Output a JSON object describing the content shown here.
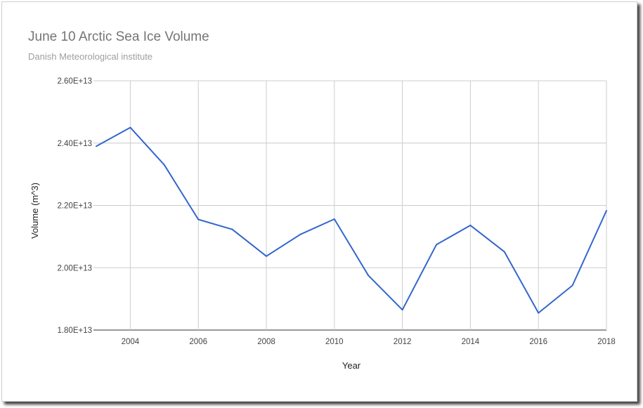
{
  "chart_data": {
    "type": "line",
    "title": "June 10 Arctic Sea Ice Volume",
    "subtitle": "Danish Meteorological institute",
    "xlabel": "Year",
    "ylabel": "Volume (m^3)",
    "x": [
      2003,
      2004,
      2005,
      2006,
      2007,
      2008,
      2009,
      2010,
      2011,
      2012,
      2013,
      2014,
      2015,
      2016,
      2017,
      2018
    ],
    "series": [
      {
        "values": [
          23900000000000.0,
          24500000000000.0,
          23300000000000.0,
          21550000000000.0,
          21230000000000.0,
          20370000000000.0,
          21070000000000.0,
          21560000000000.0,
          19750000000000.0,
          18650000000000.0,
          20740000000000.0,
          21360000000000.0,
          20510000000000.0,
          18550000000000.0,
          19430000000000.0,
          21830000000000.0
        ],
        "color": "#3366cc"
      }
    ],
    "xlim": [
      2003,
      2018
    ],
    "ylim": [
      18000000000000.0,
      26000000000000.0
    ],
    "x_ticks": [
      2004,
      2006,
      2008,
      2010,
      2012,
      2014,
      2016,
      2018
    ],
    "x_tick_labels": [
      "2004",
      "2006",
      "2008",
      "2010",
      "2012",
      "2014",
      "2016",
      "2018"
    ],
    "y_ticks": [
      18000000000000.0,
      20000000000000.0,
      22000000000000.0,
      24000000000000.0,
      26000000000000.0
    ],
    "y_tick_labels": [
      "1.80E+13",
      "2.00E+13",
      "2.20E+13",
      "2.40E+13",
      "2.60E+13"
    ],
    "grid": true,
    "legend": "none"
  }
}
